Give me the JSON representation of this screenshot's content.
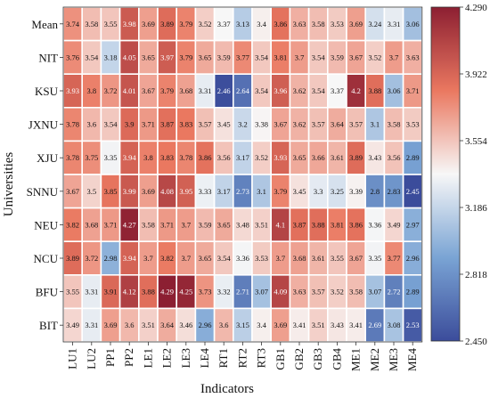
{
  "chart_data": {
    "type": "heatmap",
    "title": "",
    "xlabel": "Indicators",
    "ylabel": "Universities",
    "columns": [
      "LU1",
      "LU2",
      "PP1",
      "PP2",
      "LE1",
      "LE2",
      "LE3",
      "LE4",
      "RT1",
      "RT2",
      "RT3",
      "GB1",
      "GB2",
      "GB3",
      "GB4",
      "ME1",
      "ME2",
      "ME3",
      "ME4"
    ],
    "rows": [
      "Mean",
      "NIT",
      "KSU",
      "JXNU",
      "XJU",
      "SNNU",
      "NEU",
      "NCU",
      "BFU",
      "BIT"
    ],
    "values": [
      [
        3.74,
        3.58,
        3.55,
        3.98,
        3.69,
        3.89,
        3.79,
        3.52,
        3.37,
        3.13,
        3.4,
        3.86,
        3.63,
        3.58,
        3.53,
        3.69,
        3.24,
        3.31,
        3.06
      ],
      [
        3.76,
        3.54,
        3.18,
        4.05,
        3.65,
        3.97,
        3.79,
        3.65,
        3.59,
        3.77,
        3.54,
        3.81,
        3.7,
        3.54,
        3.59,
        3.67,
        3.52,
        3.7,
        3.63
      ],
      [
        3.93,
        3.8,
        3.72,
        4.01,
        3.67,
        3.79,
        3.68,
        3.31,
        2.46,
        2.64,
        3.54,
        3.96,
        3.62,
        3.54,
        3.37,
        4.2,
        3.88,
        3.06,
        3.71
      ],
      [
        3.78,
        3.6,
        3.54,
        3.9,
        3.71,
        3.87,
        3.83,
        3.57,
        3.45,
        3.2,
        3.38,
        3.67,
        3.62,
        3.57,
        3.64,
        3.57,
        3.1,
        3.58,
        3.53
      ],
      [
        3.78,
        3.75,
        3.35,
        3.94,
        3.8,
        3.83,
        3.78,
        3.86,
        3.56,
        3.17,
        3.52,
        3.93,
        3.65,
        3.66,
        3.61,
        3.89,
        3.43,
        3.56,
        2.89
      ],
      [
        3.67,
        3.5,
        3.85,
        3.99,
        3.69,
        4.08,
        3.95,
        3.33,
        3.17,
        2.73,
        3.1,
        3.79,
        3.45,
        3.3,
        3.25,
        3.39,
        2.8,
        2.83,
        2.45
      ],
      [
        3.82,
        3.68,
        3.71,
        4.27,
        3.58,
        3.71,
        3.7,
        3.59,
        3.65,
        3.48,
        3.51,
        4.1,
        3.87,
        3.88,
        3.81,
        3.86,
        3.36,
        3.49,
        2.97
      ],
      [
        3.89,
        3.72,
        2.98,
        3.94,
        3.7,
        3.82,
        3.7,
        3.65,
        3.54,
        3.36,
        3.53,
        3.7,
        3.68,
        3.61,
        3.55,
        3.67,
        3.35,
        3.77,
        2.96
      ],
      [
        3.55,
        3.31,
        3.91,
        4.12,
        3.88,
        4.29,
        4.25,
        3.73,
        3.32,
        2.71,
        3.07,
        4.09,
        3.63,
        3.57,
        3.52,
        3.58,
        3.07,
        2.72,
        2.89
      ],
      [
        3.49,
        3.31,
        3.69,
        3.6,
        3.51,
        3.64,
        3.46,
        2.96,
        3.6,
        3.15,
        3.4,
        3.69,
        3.41,
        3.51,
        3.43,
        3.41,
        2.69,
        3.08,
        2.53
      ]
    ],
    "colorbar": {
      "min": 2.45,
      "max": 4.29,
      "ticks": [
        "4.290",
        "3.922",
        "3.554",
        "3.186",
        "2.818",
        "2.450"
      ],
      "colors": [
        "#3b4c9b",
        "#f7f7f7",
        "#8c1f32"
      ]
    },
    "grid": true
  }
}
